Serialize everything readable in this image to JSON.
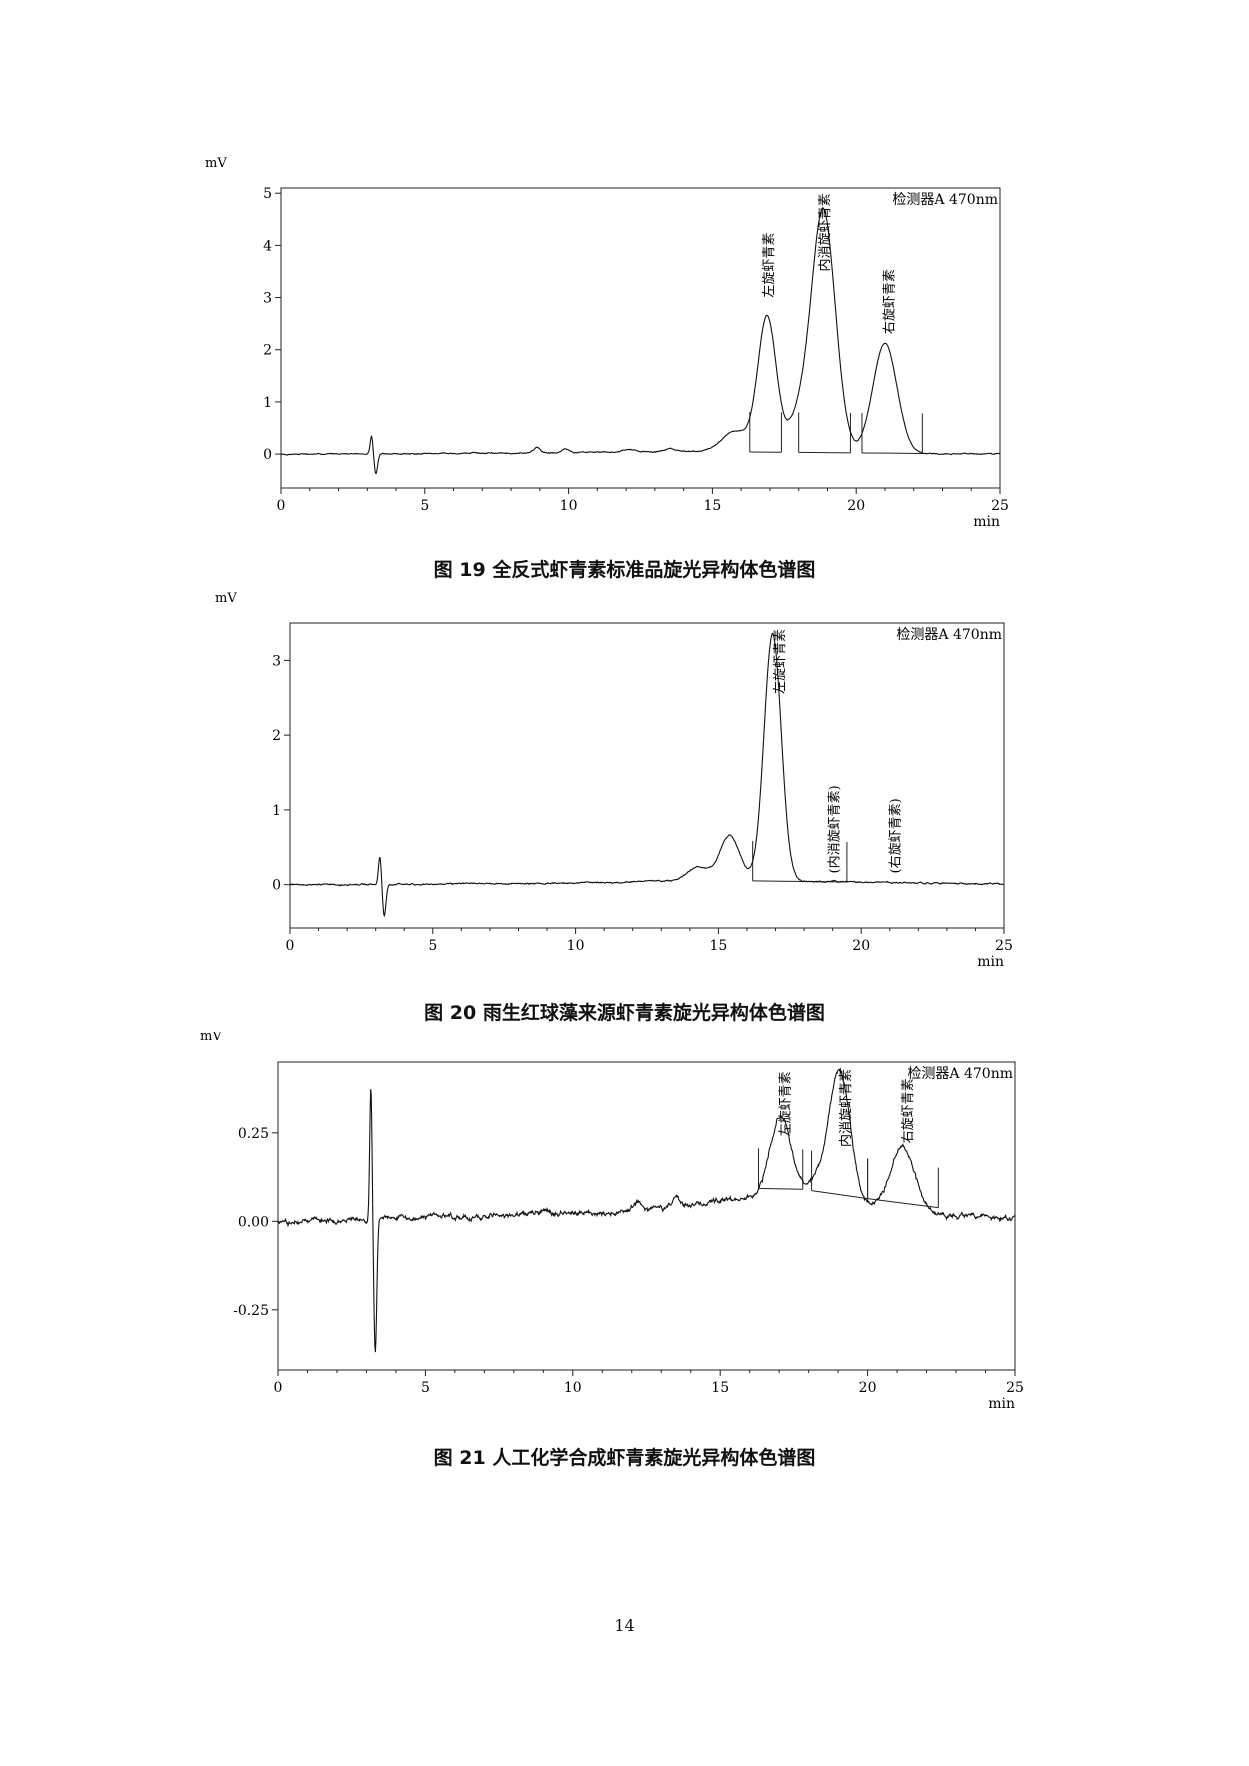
{
  "chart_data": [
    {
      "type": "line",
      "title": "图 19  全反式虾青素标准品旋光异构体色谱图",
      "ylabel": "mV",
      "xlabel": "min",
      "detector_label": "检测器A 470nm",
      "xlim": [
        0,
        25
      ],
      "ylim": [
        -0.65,
        5.1
      ],
      "xticks": [
        "0",
        "5",
        "10",
        "15",
        "20",
        "25"
      ],
      "yticks": [
        "0",
        "1",
        "2",
        "3",
        "4",
        "5"
      ],
      "ytick_values": [
        0,
        1,
        2,
        3,
        4,
        5
      ],
      "noise": 0.012,
      "baseline_points": [
        [
          0,
          0
        ],
        [
          9,
          0.02
        ],
        [
          14,
          0.05
        ],
        [
          25,
          0
        ]
      ],
      "peaks": [
        {
          "x": 3.15,
          "h": 0.35,
          "w": 0.05
        },
        {
          "x": 3.3,
          "h": -0.38,
          "w": 0.06
        },
        {
          "x": 8.9,
          "h": 0.1,
          "w": 0.12
        },
        {
          "x": 9.9,
          "h": 0.08,
          "w": 0.12
        },
        {
          "x": 12.1,
          "h": 0.05,
          "w": 0.25
        },
        {
          "x": 13.5,
          "h": 0.05,
          "w": 0.2
        },
        {
          "x": 15.8,
          "h": 0.4,
          "w": 0.45
        },
        {
          "x": 16.9,
          "h": 2.6,
          "w": 0.32
        },
        {
          "x": 17.95,
          "h": 0.55,
          "w": 0.35
        },
        {
          "x": 18.85,
          "h": 4.65,
          "w": 0.42
        },
        {
          "x": 21.0,
          "h": 2.1,
          "w": 0.42
        }
      ],
      "annotations": [
        {
          "text": "左旋虾青素",
          "x": 17.1,
          "y": 3.0
        },
        {
          "text": "内消旋虾青素",
          "x": 19.05,
          "y": 3.5
        },
        {
          "text": "右旋虾青素",
          "x": 21.3,
          "y": 2.3
        }
      ],
      "integration_segments": [
        [
          16.3,
          17.4
        ],
        [
          18.0,
          19.8
        ],
        [
          20.2,
          22.3
        ]
      ]
    },
    {
      "type": "line",
      "title": "图 20  雨生红球藻来源虾青素旋光异构体色谱图",
      "ylabel": "mV",
      "xlabel": "min",
      "detector_label": "检测器A 470nm",
      "xlim": [
        0,
        25
      ],
      "ylim": [
        -0.58,
        3.5
      ],
      "xticks": [
        "0",
        "5",
        "10",
        "15",
        "20",
        "25"
      ],
      "yticks": [
        "0",
        "1",
        "2",
        "3"
      ],
      "ytick_values": [
        0,
        1,
        2,
        3
      ],
      "noise": 0.01,
      "baseline_points": [
        [
          0,
          0
        ],
        [
          10,
          0.02
        ],
        [
          14,
          0.06
        ],
        [
          25,
          0.01
        ]
      ],
      "peaks": [
        {
          "x": 3.15,
          "h": 0.38,
          "w": 0.05
        },
        {
          "x": 3.3,
          "h": -0.42,
          "w": 0.06
        },
        {
          "x": 14.3,
          "h": 0.18,
          "w": 0.35
        },
        {
          "x": 15.4,
          "h": 0.6,
          "w": 0.35
        },
        {
          "x": 16.9,
          "h": 3.3,
          "w": 0.3
        }
      ],
      "annotations": [
        {
          "text": "左旋虾青素",
          "x": 17.3,
          "y": 2.55
        },
        {
          "text": "(内消旋虾青素)",
          "x": 19.2,
          "y": 0.15
        },
        {
          "text": "(右旋虾青素)",
          "x": 21.35,
          "y": 0.15
        }
      ],
      "integration_segments": [
        [
          16.2,
          19.5
        ]
      ]
    },
    {
      "type": "line",
      "title": "图 21  人工化学合成虾青素旋光异构体色谱图",
      "ylabel": "mV",
      "xlabel": "min",
      "detector_label": "检测器A 470nm",
      "xlim": [
        0,
        25
      ],
      "ylim": [
        -0.42,
        0.45
      ],
      "xticks": [
        "0",
        "5",
        "10",
        "15",
        "20",
        "25"
      ],
      "yticks": [
        "0.25",
        "0.00",
        "-0.25"
      ],
      "ytick_values": [
        0.25,
        0,
        -0.25
      ],
      "noise": 0.008,
      "baseline_points": [
        [
          0,
          0
        ],
        [
          9,
          0.02
        ],
        [
          12,
          0.025
        ],
        [
          14,
          0.045
        ],
        [
          16,
          0.07
        ],
        [
          17,
          0.08
        ],
        [
          22,
          0.02
        ],
        [
          25,
          0.01
        ]
      ],
      "peaks": [
        {
          "x": 3.15,
          "h": 0.38,
          "w": 0.04
        },
        {
          "x": 3.3,
          "h": -0.38,
          "w": 0.05
        },
        {
          "x": 9.0,
          "h": 0.01,
          "w": 0.2
        },
        {
          "x": 12.2,
          "h": 0.025,
          "w": 0.15
        },
        {
          "x": 13.5,
          "h": 0.025,
          "w": 0.15
        },
        {
          "x": 17.05,
          "h": 0.22,
          "w": 0.35
        },
        {
          "x": 18.3,
          "h": 0.05,
          "w": 0.3
        },
        {
          "x": 19.05,
          "h": 0.37,
          "w": 0.35
        },
        {
          "x": 21.2,
          "h": 0.18,
          "w": 0.4
        }
      ],
      "annotations": [
        {
          "text": "左旋虾青素",
          "x": 17.35,
          "y": 0.24
        },
        {
          "text": "内消旋虾青素",
          "x": 19.4,
          "y": 0.21
        },
        {
          "text": "右旋虾青素",
          "x": 21.5,
          "y": 0.22
        }
      ],
      "integration_segments": [
        [
          16.3,
          17.8
        ],
        [
          18.1,
          20.0
        ],
        [
          20.0,
          22.4
        ]
      ]
    }
  ],
  "page_number": "14"
}
